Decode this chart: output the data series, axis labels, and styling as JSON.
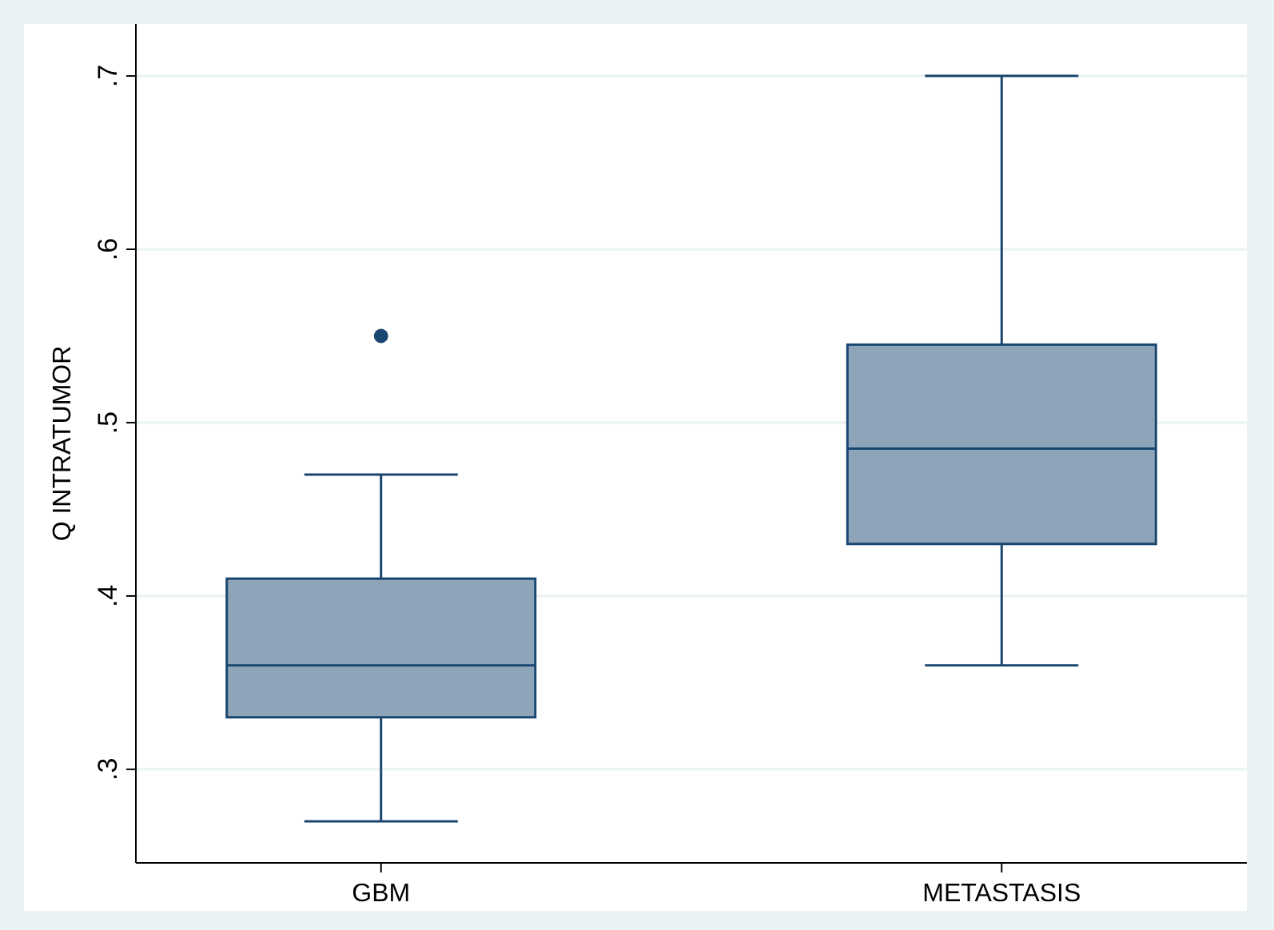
{
  "chart_data": {
    "type": "box",
    "ylabel": "Q INTRATUMOR",
    "categories": [
      "GBM",
      "METASTASIS"
    ],
    "series": [
      {
        "color": "#8ea4b8",
        "boxes": [
          {
            "low": 0.27,
            "q1": 0.33,
            "median": 0.36,
            "q3": 0.41,
            "high": 0.47,
            "outliers": [
              0.55
            ]
          },
          {
            "low": 0.36,
            "q1": 0.43,
            "median": 0.485,
            "q3": 0.545,
            "high": 0.7
          }
        ]
      }
    ],
    "ylim": [
      0.246,
      0.73
    ],
    "yticks": [
      {
        "value": 0.3,
        "label": ".3"
      },
      {
        "value": 0.4,
        "label": ".4"
      },
      {
        "value": 0.5,
        "label": ".5"
      },
      {
        "value": 0.6,
        "label": ".6"
      },
      {
        "value": 0.7,
        "label": ".7"
      }
    ],
    "grid": "y"
  }
}
